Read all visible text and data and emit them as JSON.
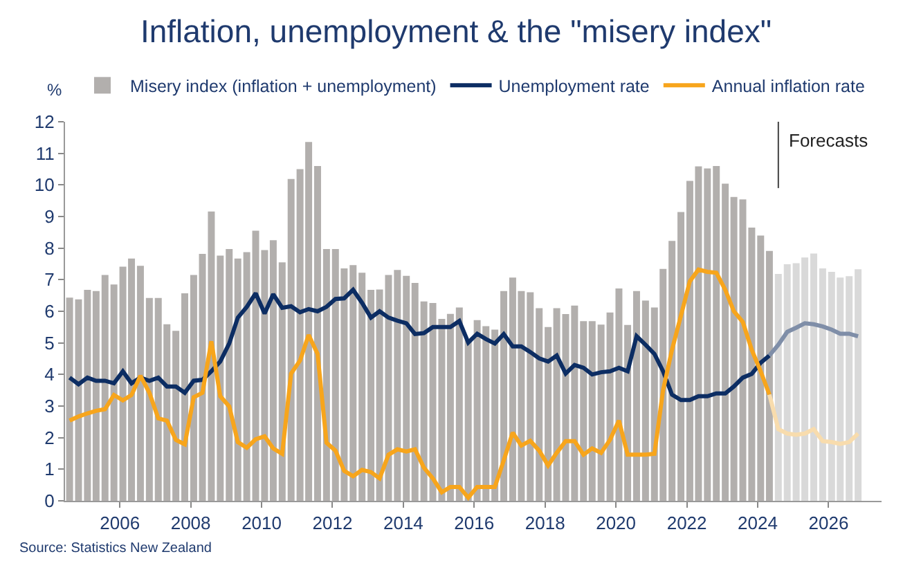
{
  "chart_data": {
    "type": "bar",
    "title": "Inflation, unemployment & the \"misery index\"",
    "ylabel": "%",
    "x": [
      "2004-08",
      "2004-11",
      "2005-02",
      "2005-05",
      "2005-08",
      "2005-11",
      "2006-02",
      "2006-05",
      "2006-08",
      "2006-11",
      "2007-02",
      "2007-05",
      "2007-08",
      "2007-11",
      "2008-02",
      "2008-05",
      "2008-08",
      "2008-11",
      "2009-02",
      "2009-05",
      "2009-08",
      "2009-11",
      "2010-02",
      "2010-05",
      "2010-08",
      "2010-11",
      "2011-02",
      "2011-05",
      "2011-08",
      "2011-11",
      "2012-02",
      "2012-05",
      "2012-08",
      "2012-11",
      "2013-02",
      "2013-05",
      "2013-08",
      "2013-11",
      "2014-02",
      "2014-05",
      "2014-08",
      "2014-11",
      "2015-02",
      "2015-05",
      "2015-08",
      "2015-11",
      "2016-02",
      "2016-05",
      "2016-08",
      "2016-11",
      "2017-02",
      "2017-05",
      "2017-08",
      "2017-11",
      "2018-02",
      "2018-05",
      "2018-08",
      "2018-11",
      "2019-02",
      "2019-05",
      "2019-08",
      "2019-11",
      "2020-02",
      "2020-05",
      "2020-08",
      "2020-11",
      "2021-02",
      "2021-05",
      "2021-08",
      "2021-11",
      "2022-02",
      "2022-05",
      "2022-08",
      "2022-11",
      "2023-02",
      "2023-05",
      "2023-08",
      "2023-11",
      "2024-02",
      "2024-05"
    ],
    "series": [
      {
        "name": "Misery index (inflation + unemployment)",
        "color": "#b2afad",
        "values": [
          6.43,
          6.38,
          6.68,
          6.64,
          7.15,
          6.85,
          7.41,
          7.67,
          7.44,
          6.42,
          6.42,
          5.59,
          5.38,
          6.57,
          7.15,
          7.82,
          9.16,
          7.76,
          7.97,
          7.67,
          7.87,
          8.55,
          7.94,
          8.25,
          7.55,
          10.19,
          10.5,
          11.36,
          10.6,
          7.97,
          7.97,
          7.36,
          7.46,
          7.22,
          6.68,
          6.69,
          7.15,
          7.31,
          7.12,
          6.9,
          6.31,
          6.26,
          5.76,
          5.92,
          6.12,
          5.1,
          5.72,
          5.53,
          5.42,
          6.64,
          7.07,
          6.64,
          6.6,
          6.1,
          5.5,
          6.1,
          5.91,
          6.18,
          5.69,
          5.69,
          5.58,
          5.96,
          6.72,
          5.57,
          6.64,
          6.34,
          6.12,
          7.34,
          8.23,
          9.14,
          10.13,
          10.59,
          10.52,
          10.6,
          10.04,
          9.62,
          9.54,
          8.65,
          8.4,
          7.91
        ]
      },
      {
        "color": "#d9d9d9",
        "x": [
          "2024-08",
          "2024-11",
          "2025-02",
          "2025-05",
          "2025-08",
          "2025-11",
          "2026-02",
          "2026-05",
          "2026-08",
          "2026-11"
        ],
        "values": [
          7.18,
          7.49,
          7.52,
          7.7,
          7.83,
          7.36,
          7.25,
          7.07,
          7.11,
          7.33
        ]
      },
      {
        "type": "line",
        "name": "Unemployment rate",
        "color": "#0c2d63",
        "values": [
          3.9,
          3.69,
          3.9,
          3.8,
          3.8,
          3.72,
          4.1,
          3.72,
          3.9,
          3.8,
          3.9,
          3.62,
          3.62,
          3.42,
          3.8,
          3.83,
          4.1,
          4.41,
          4.98,
          5.8,
          6.14,
          6.57,
          5.93,
          6.54,
          6.11,
          6.16,
          5.97,
          6.07,
          6.0,
          6.14,
          6.39,
          6.41,
          6.68,
          6.27,
          5.8,
          6.0,
          5.8,
          5.7,
          5.62,
          5.28,
          5.31,
          5.5,
          5.5,
          5.5,
          5.69,
          5.01,
          5.29,
          5.12,
          4.98,
          5.28,
          4.89,
          4.89,
          4.71,
          4.51,
          4.41,
          4.6,
          4.03,
          4.3,
          4.21,
          4.0,
          4.07,
          4.1,
          4.21,
          4.1,
          5.21,
          4.94,
          4.65,
          4.1,
          3.36,
          3.19,
          3.19,
          3.31,
          3.31,
          3.4,
          3.4,
          3.62,
          3.9,
          4.02,
          4.37,
          4.6
        ]
      },
      {
        "type": "line",
        "color": "#7f8ea8",
        "x": [
          "2024-05",
          "2024-08",
          "2024-11",
          "2025-02",
          "2025-05",
          "2025-08",
          "2025-11",
          "2026-02",
          "2026-05",
          "2026-08",
          "2026-11"
        ],
        "values": [
          4.6,
          4.94,
          5.35,
          5.48,
          5.62,
          5.59,
          5.52,
          5.42,
          5.29,
          5.29,
          5.21
        ]
      },
      {
        "type": "line",
        "name": "Annual inflation rate",
        "color": "#f7a51c",
        "values": [
          2.54,
          2.67,
          2.77,
          2.85,
          2.9,
          3.35,
          3.18,
          3.35,
          3.96,
          3.42,
          2.61,
          2.54,
          1.93,
          1.79,
          3.28,
          3.42,
          5.05,
          3.31,
          2.99,
          1.86,
          1.68,
          1.95,
          2.04,
          1.66,
          1.49,
          4.03,
          4.44,
          5.25,
          4.65,
          1.84,
          1.59,
          0.95,
          0.78,
          0.98,
          0.91,
          0.71,
          1.46,
          1.63,
          1.56,
          1.63,
          1.05,
          0.71,
          0.27,
          0.44,
          0.44,
          0.1,
          0.44,
          0.44,
          0.44,
          1.28,
          2.16,
          1.75,
          1.9,
          1.59,
          1.12,
          1.52,
          1.89,
          1.89,
          1.46,
          1.66,
          1.52,
          1.93,
          2.54,
          1.46,
          1.46,
          1.46,
          1.49,
          3.5,
          4.78,
          5.86,
          6.95,
          7.32,
          7.25,
          7.22,
          6.68,
          6.0,
          5.66,
          4.78,
          4.1,
          3.36
        ]
      },
      {
        "type": "line",
        "color": "#f8dcad",
        "x": [
          "2024-05",
          "2024-08",
          "2024-11",
          "2025-02",
          "2025-05",
          "2025-08",
          "2025-11",
          "2026-02",
          "2026-05",
          "2026-08",
          "2026-11"
        ],
        "values": [
          3.36,
          2.27,
          2.13,
          2.09,
          2.13,
          2.27,
          1.89,
          1.86,
          1.8,
          1.86,
          2.13
        ]
      }
    ],
    "xlim": [
      "2004-06-15",
      "2027-07"
    ],
    "xticks": [
      {
        "value": "2006",
        "label": "2006"
      },
      {
        "value": "2008",
        "label": "2008"
      },
      {
        "value": "2010",
        "label": "2010"
      },
      {
        "value": "2012",
        "label": "2012"
      },
      {
        "value": "2014",
        "label": "2014"
      },
      {
        "value": "2016",
        "label": "2016"
      },
      {
        "value": "2018",
        "label": "2018"
      },
      {
        "value": "2020",
        "label": "2020"
      },
      {
        "value": "2022",
        "label": "2022"
      },
      {
        "value": "2024",
        "label": "2024"
      },
      {
        "value": "2026",
        "label": "2026"
      }
    ],
    "ylim": [
      0,
      12
    ],
    "yticks": [
      0,
      1,
      2,
      3,
      4,
      5,
      6,
      7,
      8,
      9,
      10,
      11,
      12
    ],
    "ref_lines": [
      {
        "axis": "x",
        "value": "2024-08",
        "label": "Forecasts",
        "color": "#404040"
      }
    ],
    "legend": "top",
    "annotations": [
      "Source: Statistics New Zealand"
    ]
  }
}
